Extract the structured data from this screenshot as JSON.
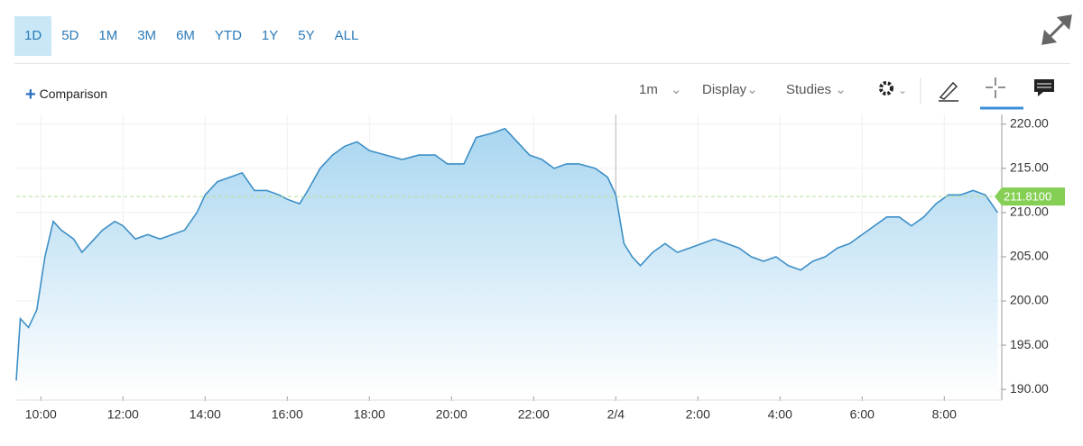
{
  "toolbar": {
    "ranges": [
      "1D",
      "5D",
      "1M",
      "3M",
      "6M",
      "YTD",
      "1Y",
      "5Y",
      "ALL"
    ],
    "comparison": "Comparison",
    "interval": "1m",
    "menus": [
      "Display",
      "Studies"
    ]
  },
  "chart_data": {
    "type": "area",
    "color": "#3d8fc6",
    "x": [
      9.4,
      9.5,
      9.7,
      9.9,
      10.1,
      10.3,
      10.5,
      10.8,
      11.0,
      11.3,
      11.5,
      11.8,
      12.0,
      12.3,
      12.6,
      12.9,
      13.2,
      13.5,
      13.8,
      14.0,
      14.3,
      14.6,
      14.9,
      15.2,
      15.5,
      15.8,
      16.0,
      16.3,
      16.5,
      16.8,
      17.1,
      17.4,
      17.7,
      18.0,
      18.4,
      18.8,
      19.2,
      19.6,
      19.9,
      20.3,
      20.6,
      21.0,
      21.3,
      21.6,
      21.9,
      22.2,
      22.5,
      22.8,
      23.1,
      23.5,
      23.8,
      24.0,
      24.2,
      24.4,
      24.6,
      24.9,
      25.2,
      25.5,
      25.8,
      26.1,
      26.4,
      26.7,
      27.0,
      27.3,
      27.6,
      27.9,
      28.2,
      28.5,
      28.8,
      29.1,
      29.4,
      29.7,
      30.0,
      30.3,
      30.6,
      30.9,
      31.2,
      31.5,
      31.8,
      32.1,
      32.4,
      32.7,
      33.0,
      33.3
    ],
    "values": [
      191,
      198,
      197,
      199,
      205,
      209,
      208,
      207,
      205.5,
      207,
      208,
      209,
      208.5,
      207,
      207.5,
      207,
      207.5,
      208,
      210,
      212,
      213.5,
      214,
      214.5,
      212.5,
      212.5,
      212,
      211.5,
      211,
      212.5,
      215,
      216.5,
      217.5,
      218,
      217,
      216.5,
      216,
      216.5,
      216.5,
      215.5,
      215.5,
      218.5,
      219,
      219.5,
      218,
      216.5,
      216,
      215,
      215.5,
      215.5,
      215,
      214,
      212,
      206.5,
      205,
      204,
      205.5,
      206.5,
      205.5,
      206,
      206.5,
      207,
      206.5,
      206,
      205,
      204.5,
      205,
      204,
      203.5,
      204.5,
      205,
      206,
      206.5,
      207.5,
      208.5,
      209.5,
      209.5,
      208.5,
      209.5,
      211,
      212,
      212,
      212.5,
      212,
      210
    ],
    "xlim": [
      9.4,
      33.4
    ],
    "xticks": [
      {
        "value": 10,
        "label": "10:00"
      },
      {
        "value": 12,
        "label": "12:00"
      },
      {
        "value": 14,
        "label": "14:00"
      },
      {
        "value": 16,
        "label": "16:00"
      },
      {
        "value": 18,
        "label": "18:00"
      },
      {
        "value": 20,
        "label": "20:00"
      },
      {
        "value": 22,
        "label": "22:00"
      },
      {
        "value": 24,
        "label": "2/4"
      },
      {
        "value": 26,
        "label": "2:00"
      },
      {
        "value": 28,
        "label": "4:00"
      },
      {
        "value": 30,
        "label": "6:00"
      },
      {
        "value": 32,
        "label": "8:00"
      }
    ],
    "ylim": [
      189.2,
      221.1
    ],
    "yticks": [
      {
        "value": 190,
        "label": "190.00"
      },
      {
        "value": 195,
        "label": "195.00"
      },
      {
        "value": 200,
        "label": "200.00"
      },
      {
        "value": 205,
        "label": "205.00"
      },
      {
        "value": 210,
        "label": "210.00"
      },
      {
        "value": 215,
        "label": "215.00"
      },
      {
        "value": 220,
        "label": "220.00"
      }
    ],
    "last_price": {
      "value": 211.81,
      "label": "211.8100"
    },
    "grid": true
  }
}
